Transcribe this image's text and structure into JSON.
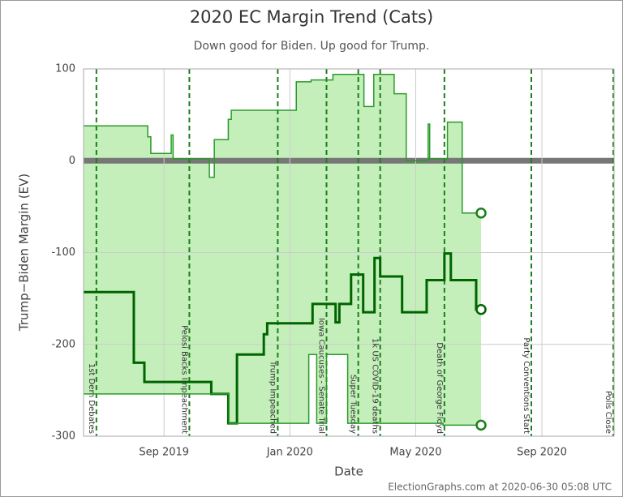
{
  "chart_data": {
    "type": "step",
    "title": "2020 EC Margin Trend (Cats)",
    "subtitle": "Down good for Biden. Up good for Trump.",
    "x_label": "Date",
    "y_label": "Trump−Biden Margin (EV)",
    "footer": "ElectionGraphs.com at 2020-06-30 05:08 UTC",
    "xlim": [
      2019.454,
      2020.858
    ],
    "xticks": [
      {
        "value": 2019.667,
        "label": "Sep 2019"
      },
      {
        "value": 2020.0,
        "label": "Jan 2020"
      },
      {
        "value": 2020.333,
        "label": "May 2020"
      },
      {
        "value": 2020.667,
        "label": "Sep 2020"
      }
    ],
    "ylim": [
      -300,
      100
    ],
    "yticks": [
      100,
      0,
      -100,
      -200,
      -300
    ],
    "grid": true,
    "band_color": "#c4efbb",
    "series": [
      {
        "color": "#2a9a2a",
        "linewidth": 1.5,
        "x": [
          2019.454,
          2019.624,
          2019.632,
          2019.686,
          2019.691,
          2019.787,
          2019.8,
          2019.837,
          2019.845,
          2020.017,
          2020.056,
          2020.114,
          2020.196,
          2020.222,
          2020.276,
          2020.308,
          2020.366,
          2020.37,
          2020.417,
          2020.456,
          2020.506
        ],
        "values": [
          38,
          26,
          8,
          28,
          2,
          -18,
          23,
          45,
          55,
          86,
          88,
          94,
          59,
          94,
          73,
          0,
          40,
          2,
          42,
          -57,
          -57
        ]
      },
      {
        "color": "#006400",
        "linewidth": 3,
        "x": [
          2019.454,
          2019.587,
          2019.615,
          2019.792,
          2019.837,
          2019.86,
          2019.931,
          2019.94,
          2020.06,
          2020.121,
          2020.131,
          2020.162,
          2020.194,
          2020.224,
          2020.239,
          2020.297,
          2020.362,
          2020.409,
          2020.426,
          2020.493,
          2020.506
        ],
        "values": [
          -143,
          -220,
          -241,
          -254,
          -286,
          -211,
          -189,
          -177,
          -156,
          -176,
          -156,
          -124,
          -165,
          -106,
          -126,
          -165,
          -130,
          -101,
          -130,
          -162,
          -162
        ]
      },
      {
        "color": "#2a9a2a",
        "linewidth": 1.5,
        "x": [
          2019.454,
          2019.839,
          2020.05,
          2020.071,
          2020.097,
          2020.153,
          2020.405,
          2020.506
        ],
        "values": [
          -254,
          -286,
          -211,
          -286,
          -211,
          -286,
          -288,
          -288
        ]
      }
    ],
    "annotations": [
      {
        "x": 2019.488,
        "label": "1st Dem Debates"
      },
      {
        "x": 2019.734,
        "label": "Pelosi Backs Impeachment"
      },
      {
        "x": 2019.968,
        "label": "Trump Impeached"
      },
      {
        "x": 2020.097,
        "label": "Iowa Caucuses - Senate Trial"
      },
      {
        "x": 2020.181,
        "label": "Super Tuesday"
      },
      {
        "x": 2020.239,
        "label": "1k US COVID-19 deaths"
      },
      {
        "x": 2020.409,
        "label": "Death of George Floyd"
      },
      {
        "x": 2020.639,
        "label": "Party Conventions Start"
      },
      {
        "x": 2020.856,
        "label": "Polls Close"
      }
    ]
  }
}
